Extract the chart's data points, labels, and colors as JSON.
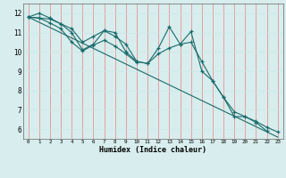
{
  "xlabel": "Humidex (Indice chaleur)",
  "x_values": [
    0,
    1,
    2,
    3,
    4,
    5,
    6,
    7,
    8,
    9,
    10,
    11,
    12,
    13,
    14,
    15,
    16,
    17,
    18,
    19,
    20,
    21,
    22,
    23
  ],
  "line1": [
    11.8,
    12.0,
    11.75,
    11.45,
    11.0,
    10.1,
    10.4,
    11.1,
    11.0,
    10.0,
    9.5,
    9.4,
    10.2,
    11.3,
    10.4,
    11.05,
    9.0,
    8.5,
    7.65,
    6.65,
    6.65,
    6.35,
    5.9,
    null
  ],
  "line2": [
    11.8,
    11.75,
    11.7,
    11.45,
    11.2,
    10.5,
    10.8,
    11.1,
    10.8,
    10.4,
    9.5,
    9.4,
    9.9,
    10.2,
    10.4,
    10.5,
    9.5,
    8.5,
    7.65,
    6.9,
    6.65,
    6.4,
    6.1,
    5.85
  ],
  "line3": [
    11.8,
    11.75,
    11.5,
    11.2,
    10.5,
    10.05,
    10.35,
    10.6,
    10.3,
    9.9,
    9.45,
    null,
    null,
    null,
    null,
    null,
    null,
    null,
    null,
    null,
    null,
    null,
    null,
    null
  ],
  "line_straight": [
    11.8,
    11.53,
    11.26,
    10.99,
    10.72,
    10.45,
    10.18,
    9.91,
    9.64,
    9.37,
    9.1,
    8.83,
    8.56,
    8.29,
    8.02,
    7.75,
    7.48,
    7.21,
    6.94,
    6.67,
    6.4,
    6.13,
    5.86,
    5.59
  ],
  "bg_color": "#d8eded",
  "line_color": "#1a6b6b",
  "grid_color_h": "#c8e8e8",
  "grid_color_v": "#f08080",
  "ylim": [
    5.5,
    12.5
  ],
  "xlim": [
    -0.5,
    23.5
  ]
}
